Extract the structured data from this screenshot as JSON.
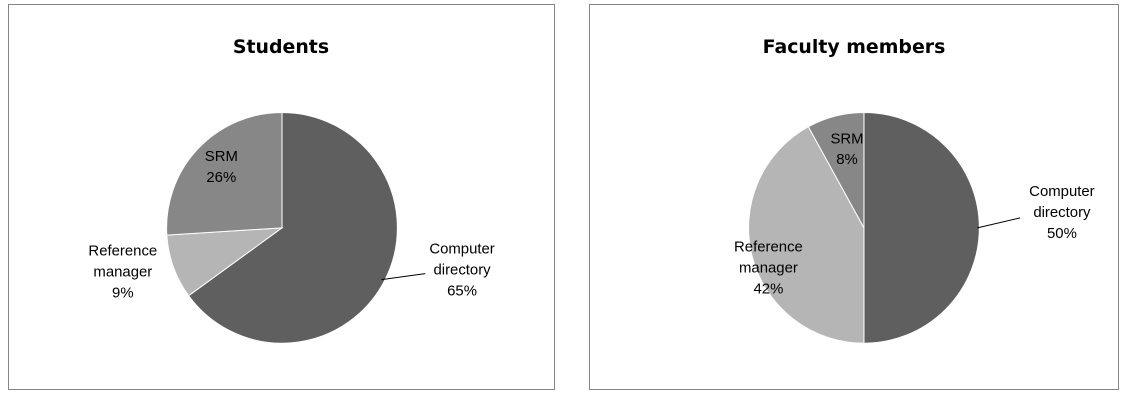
{
  "chart_data": [
    {
      "type": "pie",
      "title": "Students",
      "slices": [
        {
          "label": [
            "Computer",
            "directory"
          ],
          "value": 65,
          "pct": "65%",
          "color": "#5f5f5f"
        },
        {
          "label": [
            "Reference",
            "manager"
          ],
          "value": 9,
          "pct": "9%",
          "color": "#b5b5b5"
        },
        {
          "label": [
            "SRM"
          ],
          "value": 26,
          "pct": "26%",
          "color": "#878787"
        }
      ]
    },
    {
      "type": "pie",
      "title": "Faculty members",
      "slices": [
        {
          "label": [
            "Computer",
            "directory"
          ],
          "value": 50,
          "pct": "50%",
          "color": "#5f5f5f"
        },
        {
          "label": [
            "Reference",
            "manager"
          ],
          "value": 42,
          "pct": "42%",
          "color": "#b5b5b5"
        },
        {
          "label": [
            "SRM"
          ],
          "value": 8,
          "pct": "8%",
          "color": "#878787"
        }
      ]
    }
  ]
}
